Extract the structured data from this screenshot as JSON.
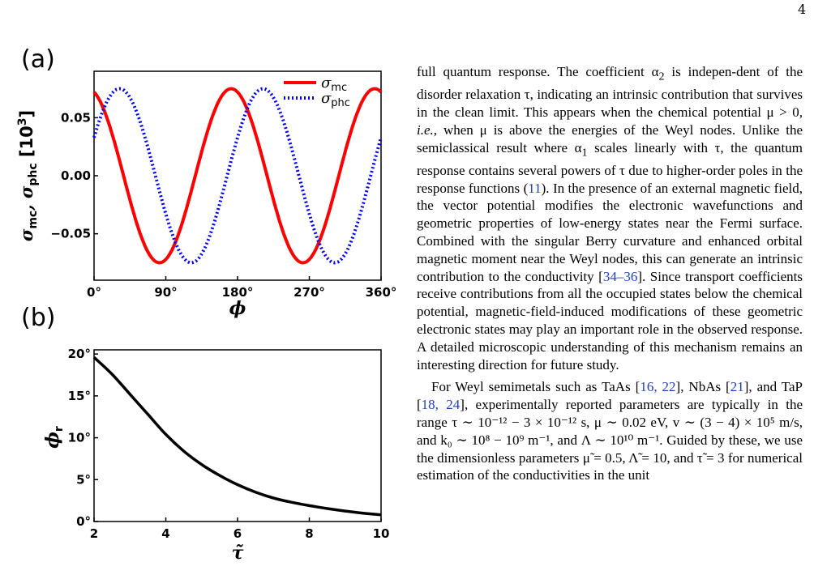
{
  "page_number": "4",
  "figure": {
    "panel_a_label": "(a)",
    "panel_b_label": "(b)",
    "chart_a": {
      "type": "line",
      "xlabel": "ϕ",
      "ylabel_parts": [
        "σ",
        "mc",
        ", σ",
        "phc",
        " [10",
        "3",
        "]"
      ],
      "x_ticks": [
        "0°",
        "90°",
        "180°",
        "270°",
        "360°"
      ],
      "y_ticks": [
        "0.05",
        "0.00",
        "−0.05"
      ],
      "xlim": [
        0,
        360
      ],
      "ylim": [
        -0.09,
        0.09
      ],
      "legend_position": "top-right",
      "series": [
        {
          "name": "mc",
          "color": "#ff0000",
          "style": "solid",
          "amplitude": 0.075,
          "period": 180,
          "peak_phase": 172
        },
        {
          "name": "phc",
          "color": "#0000ff",
          "style": "dotted",
          "amplitude": 0.075,
          "period": 180,
          "peak_phase": 212
        }
      ]
    },
    "chart_b": {
      "type": "line",
      "xlabel": "τ̃",
      "ylabel": "ϕr",
      "x_ticks": [
        "2",
        "4",
        "6",
        "8",
        "10"
      ],
      "y_ticks": [
        "20°",
        "15°",
        "10°",
        "5°",
        "0°"
      ],
      "xlim": [
        2,
        10
      ],
      "ylim": [
        0,
        20.5
      ],
      "points": [
        [
          2,
          19.6
        ],
        [
          2.5,
          17.6
        ],
        [
          3,
          15.2
        ],
        [
          3.5,
          12.8
        ],
        [
          4,
          10.4
        ],
        [
          4.5,
          8.4
        ],
        [
          5,
          6.8
        ],
        [
          5.5,
          5.5
        ],
        [
          6,
          4.4
        ],
        [
          6.5,
          3.5
        ],
        [
          7,
          2.8
        ],
        [
          7.5,
          2.3
        ],
        [
          8,
          1.9
        ],
        [
          8.5,
          1.55
        ],
        [
          9,
          1.25
        ],
        [
          9.5,
          1.0
        ],
        [
          10,
          0.8
        ]
      ]
    }
  },
  "text": {
    "p1_1": "full quantum response. The coefficient α",
    "p1_2": " is indepen-dent of the disorder relaxation τ, indicating an intrinsic contribution that survives in the clean limit. This appears when the chemical potential μ > 0, ",
    "p1_ie": "i.e.",
    "p1_3": ", when μ is above the energies of the Weyl nodes. Unlike the semiclassical result where α",
    "p1_4": " scales linearly with τ, the quantum response contains several powers of τ due to higher-order poles in the response functions (",
    "p1_ref1": "11",
    "p1_5": "). In the presence of an external magnetic field, the vector potential modifies the electronic wavefunctions and geometric properties of low-energy states near the Fermi surface. Combined with the singular Berry curvature and enhanced orbital magnetic moment near the Weyl nodes, this can generate an intrinsic contribution to the conductivity [",
    "p1_ref2": "34–36",
    "p1_6": "]. Since transport coefficients receive contributions from all the occupied states below the chemical potential, magnetic-field-induced modifications of these geometric electronic states may play an important role in the observed response. A detailed microscopic understanding of this mechanism remains an interesting direction for future study.",
    "p2_1": "For Weyl semimetals such as TaAs [",
    "p2_ref1": "16, 22",
    "p2_2": "], NbAs [",
    "p2_ref2": "21",
    "p2_3": "], and TaP [",
    "p2_ref3": "18, 24",
    "p2_4": "], experimentally reported parameters are typically in the range τ ∼ 10⁻¹² − 3 × 10⁻¹² s, μ ∼ 0.02 eV, v ∼ (3 − 4) × 10⁵ m/s, and k₀ ∼ 10⁸ − 10⁹ m⁻¹, and Λ ∼ 10¹⁰ m⁻¹. Guided by these, we use the dimensionless parameters μ̃ = 0.5, Λ̃ = 10, and τ̃ = 3 for numerical estimation of the conductivities in the unit"
  }
}
